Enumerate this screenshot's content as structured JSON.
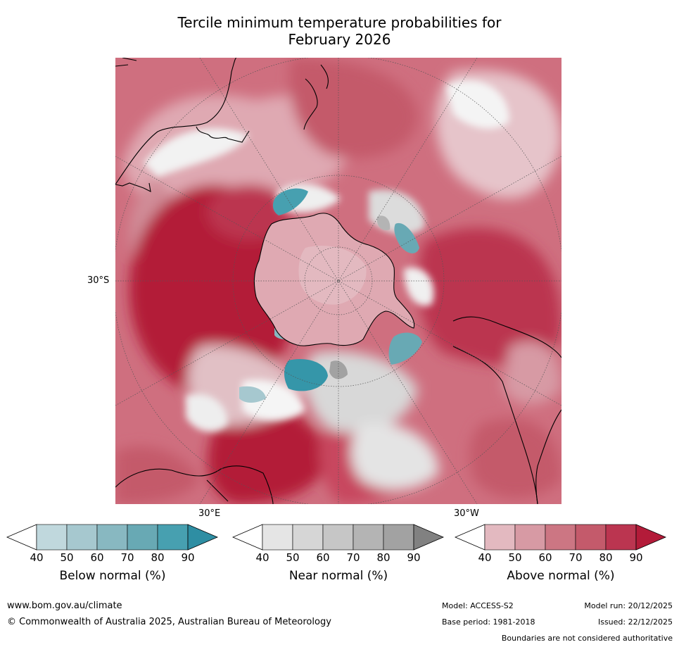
{
  "title_line1": "Tercile minimum temperature probabilities for",
  "title_line2": "February 2026",
  "labels": {
    "lat_30s": "30°S",
    "lon_30e": "30°E",
    "lon_30w": "30°W"
  },
  "colorbars": [
    {
      "label": "Below normal (%)",
      "ticks": [
        "40",
        "50",
        "60",
        "70",
        "80",
        "90"
      ],
      "colors": [
        "#c0d8dd",
        "#a6c8cf",
        "#88b8c1",
        "#68a9b4",
        "#47a0b0",
        "#2e8ea3"
      ]
    },
    {
      "label": "Near normal (%)",
      "ticks": [
        "40",
        "50",
        "60",
        "70",
        "80",
        "90"
      ],
      "colors": [
        "#e5e5e5",
        "#d6d6d6",
        "#c6c6c6",
        "#b4b4b4",
        "#a2a2a2",
        "#818181"
      ]
    },
    {
      "label": "Above normal (%)",
      "ticks": [
        "40",
        "50",
        "60",
        "70",
        "80",
        "90"
      ],
      "colors": [
        "#e3b9c0",
        "#d79aa4",
        "#cc7683",
        "#c45a6b",
        "#bb3550",
        "#b31b39"
      ]
    }
  ],
  "footer": {
    "website": "www.bom.gov.au/climate",
    "copyright": "© Commonwealth of Australia 2025, Australian Bureau of Meteorology",
    "model": "Model: ACCESS-S2",
    "base_period": "Base period: 1981-2018",
    "model_run": "Model run: 20/12/2025",
    "issued": "Issued: 22/12/2025",
    "disclaimer": "Boundaries are not considered authoritative"
  }
}
